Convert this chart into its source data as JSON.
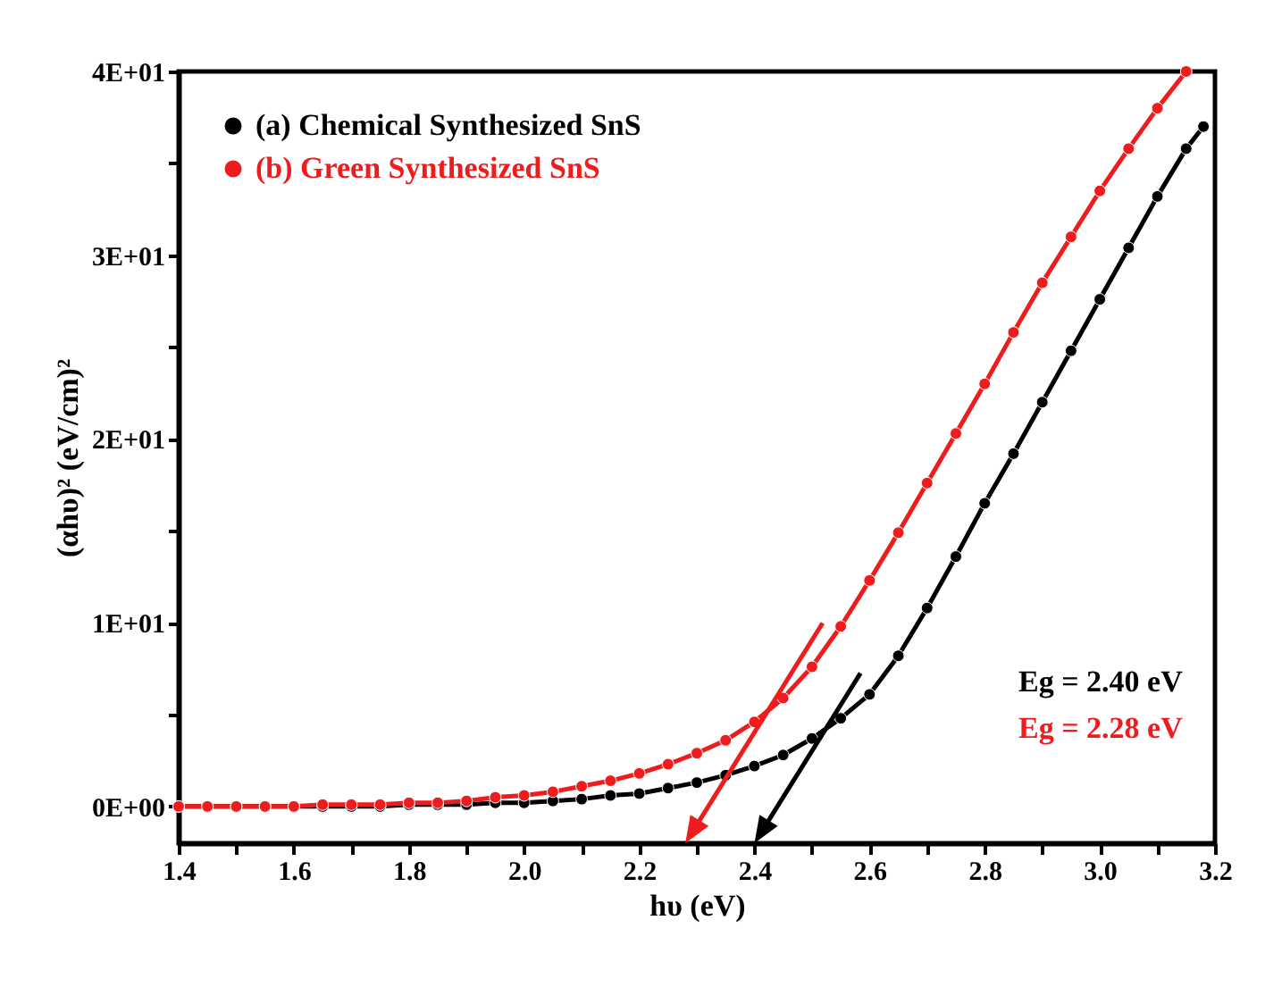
{
  "chart_data": {
    "type": "line",
    "xlabel": "hυ (eV)",
    "ylabel": "(αhυ)² (eV/cm)²",
    "xlim": [
      1.4,
      3.2
    ],
    "ylim": [
      -2,
      40
    ],
    "xticks": [
      1.4,
      {
        "value": 1.5,
        "label": null
      },
      1.6,
      {
        "value": 1.7,
        "label": null
      },
      1.8,
      {
        "value": 1.9,
        "label": null
      },
      {
        "value": 2.0,
        "label": "2.0"
      },
      {
        "value": 2.1,
        "label": null
      },
      2.2,
      {
        "value": 2.3,
        "label": null
      },
      2.4,
      {
        "value": 2.5,
        "label": null
      },
      2.6,
      {
        "value": 2.7,
        "label": null
      },
      2.8,
      {
        "value": 2.9,
        "label": null
      },
      {
        "value": 3.0,
        "label": "3.0"
      },
      {
        "value": 3.1,
        "label": null
      },
      3.2
    ],
    "yticks": [
      {
        "value": 0,
        "label": "0E+00"
      },
      {
        "value": 5,
        "label": null
      },
      {
        "value": 10,
        "label": "1E+01"
      },
      {
        "value": 15,
        "label": null
      },
      {
        "value": 20,
        "label": "2E+01"
      },
      {
        "value": 25,
        "label": null
      },
      {
        "value": 30,
        "label": "3E+01"
      },
      {
        "value": 35,
        "label": null
      },
      {
        "value": 40,
        "label": "4E+01"
      }
    ],
    "grid": false,
    "legend": "top left",
    "marker": "circle",
    "line_style": "solid",
    "series": [
      {
        "name": "(a) Chemical Synthesized SnS",
        "color": "#000000",
        "x": [
          1.4,
          1.45,
          1.5,
          1.55,
          1.6,
          1.65,
          1.7,
          1.75,
          1.8,
          1.85,
          1.9,
          1.95,
          2.0,
          2.05,
          2.1,
          2.15,
          2.2,
          2.25,
          2.3,
          2.35,
          2.4,
          2.45,
          2.5,
          2.55,
          2.6,
          2.65,
          2.7,
          2.75,
          2.8,
          2.85,
          2.9,
          2.95,
          3.0,
          3.05,
          3.1,
          3.15,
          3.18
        ],
        "values": [
          0,
          0,
          0,
          0,
          0,
          0,
          0,
          0,
          0.1,
          0.1,
          0.1,
          0.2,
          0.2,
          0.3,
          0.4,
          0.6,
          0.7,
          1.0,
          1.3,
          1.7,
          2.2,
          2.8,
          3.7,
          4.8,
          6.1,
          8.2,
          10.8,
          13.6,
          16.5,
          19.2,
          22.0,
          24.8,
          27.6,
          30.4,
          33.2,
          35.8,
          37.0
        ]
      },
      {
        "name": "(b) Green Synthesized SnS",
        "color": "#ee1c1c",
        "x": [
          1.4,
          1.45,
          1.5,
          1.55,
          1.6,
          1.65,
          1.7,
          1.75,
          1.8,
          1.85,
          1.9,
          1.95,
          2.0,
          2.05,
          2.1,
          2.15,
          2.2,
          2.25,
          2.3,
          2.35,
          2.4,
          2.45,
          2.5,
          2.55,
          2.6,
          2.65,
          2.7,
          2.75,
          2.8,
          2.85,
          2.9,
          2.95,
          3.0,
          3.05,
          3.1,
          3.15
        ],
        "values": [
          0,
          0,
          0,
          0,
          0,
          0.1,
          0.1,
          0.1,
          0.2,
          0.2,
          0.3,
          0.5,
          0.6,
          0.8,
          1.1,
          1.4,
          1.8,
          2.3,
          2.9,
          3.6,
          4.6,
          5.9,
          7.6,
          9.8,
          12.3,
          14.9,
          17.6,
          20.3,
          23.0,
          25.8,
          28.5,
          31.0,
          33.5,
          35.8,
          38.0,
          40.0
        ]
      }
    ],
    "annotations": [
      "Eg = 2.40 eV",
      "Eg = 2.28 eV"
    ]
  }
}
